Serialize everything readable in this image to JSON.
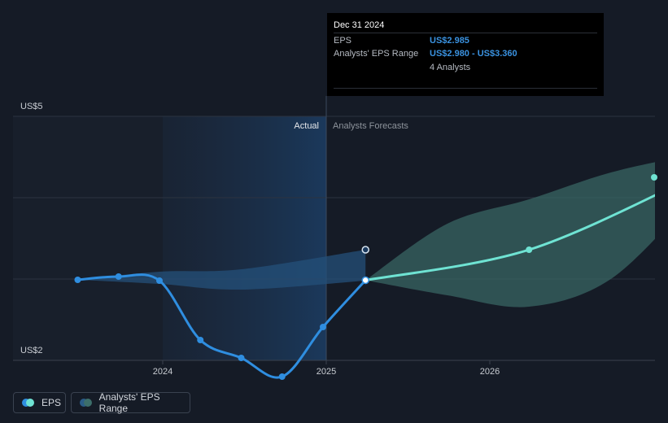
{
  "chart_data": {
    "type": "line",
    "title": "",
    "y_axis": {
      "min": 2,
      "max": 5,
      "unit": "US$",
      "labels": [
        "US$5",
        "US$2"
      ],
      "gridlines": [
        2,
        3,
        4,
        5
      ]
    },
    "x_axis": {
      "min": 2023.25,
      "max": 2027.0,
      "tick_labels": [
        {
          "value": 2024.0,
          "label": "2024"
        },
        {
          "value": 2025.0,
          "label": "2025"
        },
        {
          "value": 2026.0,
          "label": "2026"
        }
      ]
    },
    "regions": {
      "actual_label": "Actual",
      "forecast_label": "Analysts Forecasts",
      "highlight_start": 2024.0,
      "divider": 2025.0
    },
    "series": [
      {
        "name": "EPS",
        "color": "#2f8ee0",
        "points": [
          {
            "x": 2023.48,
            "y": 2.99
          },
          {
            "x": 2023.73,
            "y": 3.03
          },
          {
            "x": 2023.98,
            "y": 2.98
          },
          {
            "x": 2024.23,
            "y": 2.25
          },
          {
            "x": 2024.48,
            "y": 2.03
          },
          {
            "x": 2024.73,
            "y": 1.8
          },
          {
            "x": 2024.98,
            "y": 2.41
          },
          {
            "x": 2025.24,
            "y": 2.985
          }
        ]
      },
      {
        "name": "EPS forecast",
        "color": "#6fe3d3",
        "points": [
          {
            "x": 2025.24,
            "y": 2.985
          },
          {
            "x": 2026.24,
            "y": 3.36
          },
          {
            "x": 2027.24,
            "y": 4.25
          }
        ]
      }
    ],
    "range_history": {
      "lower": [
        {
          "x": 2023.48,
          "y": 2.99
        },
        {
          "x": 2023.98,
          "y": 2.94
        },
        {
          "x": 2024.48,
          "y": 2.87
        },
        {
          "x": 2025.24,
          "y": 2.98
        }
      ],
      "upper": [
        {
          "x": 2023.48,
          "y": 2.99
        },
        {
          "x": 2023.98,
          "y": 3.09
        },
        {
          "x": 2024.48,
          "y": 3.12
        },
        {
          "x": 2025.24,
          "y": 3.36
        }
      ]
    },
    "range_forecast": {
      "lower": [
        {
          "x": 2025.24,
          "y": 2.985
        },
        {
          "x": 2025.74,
          "y": 2.8
        },
        {
          "x": 2026.24,
          "y": 2.66
        },
        {
          "x": 2026.74,
          "y": 3.0
        },
        {
          "x": 2027.24,
          "y": 3.99
        }
      ],
      "upper": [
        {
          "x": 2025.24,
          "y": 2.985
        },
        {
          "x": 2025.74,
          "y": 3.68
        },
        {
          "x": 2026.24,
          "y": 3.98
        },
        {
          "x": 2026.74,
          "y": 4.31
        },
        {
          "x": 2027.24,
          "y": 4.53
        }
      ]
    },
    "range_endpoint": {
      "x": 2025.24,
      "y": 3.36
    },
    "hover_x": 2025.24
  },
  "tooltip": {
    "date": "Dec 31 2024",
    "rows": [
      {
        "label": "EPS",
        "value": "US$2.985"
      },
      {
        "label": "Analysts' EPS Range",
        "value": "US$2.980 - US$3.360"
      },
      {
        "label": "",
        "value": "4 Analysts"
      }
    ]
  },
  "legend": {
    "eps_label": "EPS",
    "range_label": "Analysts' EPS Range",
    "eps_colors": [
      "#2f8ee0",
      "#6fe3d3"
    ],
    "range_colors": [
      "#2a5c87",
      "#3c6e6a"
    ]
  }
}
